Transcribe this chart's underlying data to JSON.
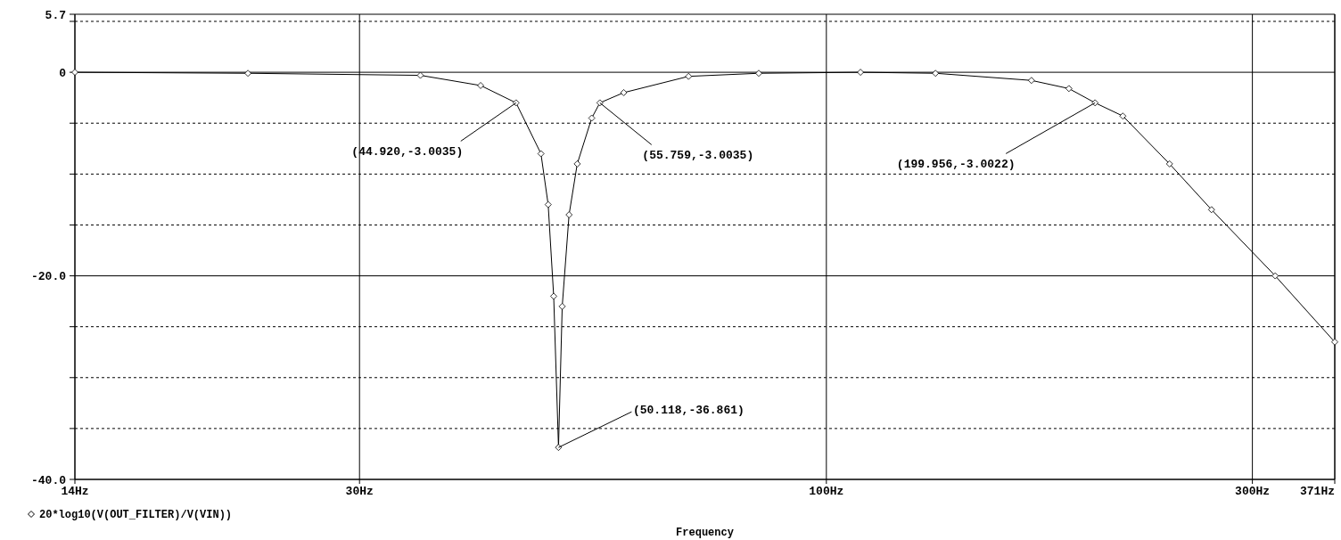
{
  "chart_data": {
    "type": "line",
    "xlabel": "Frequency",
    "log": "x",
    "xlim": [
      14.4,
      371
    ],
    "xticks": [
      {
        "value": 14.4,
        "label": "14Hz"
      },
      {
        "value": 30,
        "label": "30Hz"
      },
      {
        "value": 100,
        "label": "100Hz"
      },
      {
        "value": 300,
        "label": "300Hz"
      },
      {
        "value": 371,
        "label": "371Hz"
      }
    ],
    "ylim": [
      -40,
      5.7
    ],
    "yticks": [
      5.7,
      {
        "value": 5,
        "label": null
      },
      0,
      {
        "value": -5,
        "label": null
      },
      {
        "value": -10,
        "label": null
      },
      {
        "value": -15,
        "label": null
      },
      {
        "value": -20,
        "label": "-20.0"
      },
      {
        "value": -25,
        "label": null
      },
      {
        "value": -30,
        "label": null
      },
      {
        "value": -35,
        "label": null
      },
      {
        "value": -40,
        "label": "-40.0"
      }
    ],
    "grid": true,
    "legend": "bottom left",
    "marker": "diamond",
    "line_style": "solid",
    "series": [
      {
        "name": "20*log10(V(OUT_FILTER)/V(VIN))",
        "color": "#000000",
        "x": [
          14.4,
          22.5,
          35.1,
          41.0,
          44.92,
          47.9,
          48.8,
          49.5,
          50.118,
          50.6,
          51.5,
          52.6,
          54.6,
          55.759,
          59.3,
          70.1,
          84.0,
          109.2,
          132.5,
          169.7,
          186.9,
          199.956,
          214.8,
          242.3,
          270,
          318.2,
          371
        ],
        "values": [
          0,
          -0.1,
          -0.3,
          -1.3,
          -3.0035,
          -8,
          -13,
          -22,
          -36.861,
          -23,
          -14,
          -9,
          -4.5,
          -3.0035,
          -2,
          -0.4,
          -0.1,
          0,
          -0.1,
          -0.8,
          -1.6,
          -3.0022,
          -4.3,
          -9,
          -13.5,
          -20,
          -26.5
        ]
      }
    ],
    "annotations": [
      {
        "text": "(44.920,-3.0035)",
        "x": 44.92,
        "y": -3.0035
      },
      {
        "text": "(55.759,-3.0035)",
        "x": 55.759,
        "y": -3.0035
      },
      {
        "text": "(199.956,-3.0022)",
        "x": 199.956,
        "y": -3.0022
      },
      {
        "text": "(50.118,-36.861)",
        "x": 50.118,
        "y": -36.861
      }
    ]
  }
}
